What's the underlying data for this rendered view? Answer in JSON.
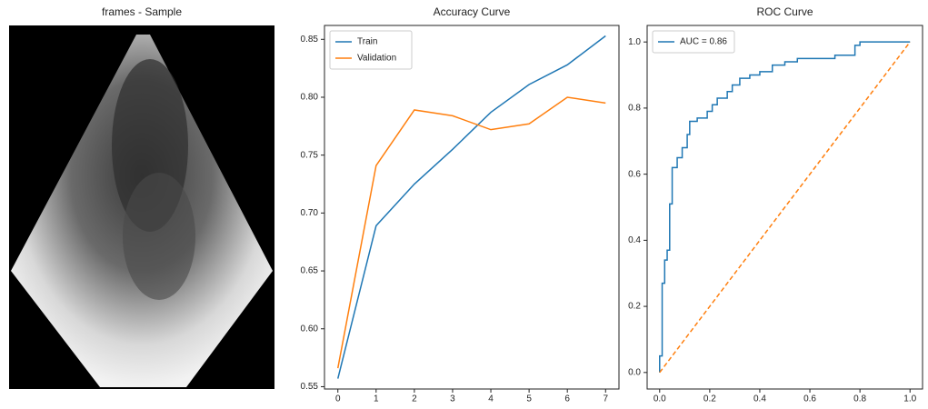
{
  "chart_data": [
    {
      "type": "image",
      "title": "frames - Sample"
    },
    {
      "type": "line",
      "title": "Accuracy Curve",
      "x": [
        0,
        1,
        2,
        3,
        4,
        5,
        6,
        7
      ],
      "series": [
        {
          "name": "Train",
          "color": "#1f77b4",
          "values": [
            0.557,
            0.689,
            0.725,
            0.755,
            0.787,
            0.811,
            0.828,
            0.853
          ]
        },
        {
          "name": "Validation",
          "color": "#ff7f0e",
          "values": [
            0.566,
            0.741,
            0.789,
            0.784,
            0.772,
            0.777,
            0.8,
            0.795
          ]
        }
      ],
      "xlim": [
        -0.35,
        7.35
      ],
      "xticks": [
        0,
        1,
        2,
        3,
        4,
        5,
        6,
        7
      ],
      "ylim": [
        0.548,
        0.862
      ],
      "yticks": [
        0.55,
        {
          "value": 0.6,
          "label": "0.60"
        },
        0.65,
        {
          "value": 0.7,
          "label": "0.70"
        },
        0.75,
        {
          "value": 0.8,
          "label": "0.80"
        },
        0.85
      ],
      "legend": "upper left",
      "grid": false
    },
    {
      "type": "line",
      "title": "ROC Curve",
      "series": [
        {
          "name": "AUC = 0.86",
          "color": "#1f77b4",
          "x": [
            0,
            0,
            0.01,
            0.01,
            0.02,
            0.02,
            0.03,
            0.03,
            0.04,
            0.04,
            0.05,
            0.05,
            0.07,
            0.07,
            0.09,
            0.09,
            0.11,
            0.11,
            0.12,
            0.12,
            0.15,
            0.15,
            0.19,
            0.19,
            0.21,
            0.21,
            0.23,
            0.23,
            0.27,
            0.27,
            0.29,
            0.29,
            0.32,
            0.32,
            0.36,
            0.36,
            0.4,
            0.4,
            0.45,
            0.45,
            0.5,
            0.5,
            0.55,
            0.55,
            0.7,
            0.7,
            0.78,
            0.78,
            0.8,
            0.8,
            1.0
          ],
          "values": [
            0,
            0.05,
            0.05,
            0.27,
            0.27,
            0.34,
            0.34,
            0.37,
            0.37,
            0.51,
            0.51,
            0.62,
            0.62,
            0.65,
            0.65,
            0.68,
            0.68,
            0.72,
            0.72,
            0.76,
            0.76,
            0.77,
            0.77,
            0.79,
            0.79,
            0.81,
            0.81,
            0.83,
            0.83,
            0.85,
            0.85,
            0.87,
            0.87,
            0.89,
            0.89,
            0.9,
            0.9,
            0.91,
            0.91,
            0.93,
            0.93,
            0.94,
            0.94,
            0.95,
            0.95,
            0.96,
            0.96,
            0.99,
            0.99,
            1.0,
            1.0
          ]
        },
        {
          "color": "#ff7f0e",
          "linestyle": "dashed",
          "x": [
            0,
            1
          ],
          "values": [
            0,
            1
          ]
        }
      ],
      "xlim": [
        -0.05,
        1.05
      ],
      "xticks": [
        {
          "value": 0,
          "label": "0.0"
        },
        0.2,
        0.4,
        0.6,
        0.8,
        {
          "value": 1,
          "label": "1.0"
        }
      ],
      "ylim": [
        -0.05,
        1.05
      ],
      "yticks": [
        {
          "value": 0,
          "label": "0.0"
        },
        0.2,
        0.4,
        0.6,
        0.8,
        {
          "value": 1,
          "label": "1.0"
        }
      ],
      "legend": "upper left",
      "grid": false
    }
  ]
}
